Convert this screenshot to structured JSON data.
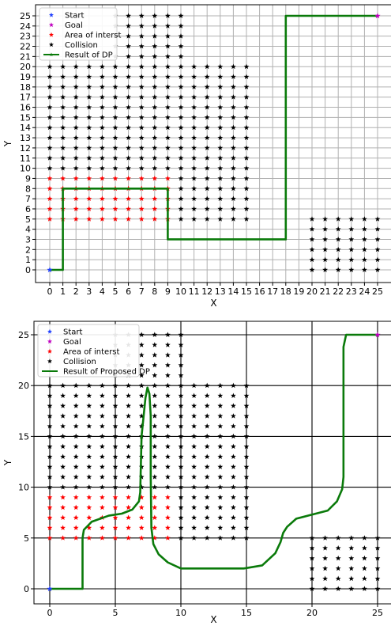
{
  "colors": {
    "start": "#1f3fff",
    "goal": "#c000c0",
    "interest": "#ff0000",
    "collision": "#000000",
    "path": "#0a7a0a",
    "grid_top": "#b0b0b0",
    "grid_bottom": "#000000"
  },
  "chart_data": [
    {
      "type": "scatter",
      "title": "",
      "xlabel": "X",
      "ylabel": "Y",
      "xlim": [
        0,
        25
      ],
      "ylim": [
        0,
        25
      ],
      "xticks": [
        "0",
        "1",
        "2",
        "3",
        "4",
        "5",
        "6",
        "7",
        "8",
        "9",
        "10",
        "11",
        "12",
        "13",
        "14",
        "15",
        "16",
        "17",
        "18",
        "19",
        "20",
        "21",
        "22",
        "23",
        "24",
        "25"
      ],
      "yticks": [
        "0",
        "1",
        "2",
        "3",
        "4",
        "5",
        "6",
        "7",
        "8",
        "9",
        "10",
        "11",
        "12",
        "13",
        "14",
        "15",
        "16",
        "17",
        "18",
        "19",
        "20",
        "21",
        "22",
        "23",
        "24",
        "25"
      ],
      "grid": true,
      "grid_step": 1,
      "legend_position": "top-left",
      "legend": [
        {
          "label": "Start",
          "kind": "start"
        },
        {
          "label": "Goal",
          "kind": "goal"
        },
        {
          "label": "Area of interst",
          "kind": "interest"
        },
        {
          "label": "Collision",
          "kind": "collision"
        },
        {
          "label": "Result of DP",
          "kind": "path"
        }
      ],
      "start": [
        0,
        0
      ],
      "goal": [
        25,
        25
      ],
      "interest_region": {
        "x_range": [
          0,
          9
        ],
        "y_range": [
          5,
          9
        ]
      },
      "collision_regions": [
        {
          "x_range": [
            0,
            15
          ],
          "y_range": [
            5,
            20
          ]
        },
        {
          "x_range": [
            5,
            10
          ],
          "y_range": [
            21,
            25
          ]
        },
        {
          "x_range": [
            20,
            25
          ],
          "y_range": [
            0,
            5
          ]
        }
      ],
      "path": {
        "name": "Result of DP",
        "x": [
          0,
          1,
          1,
          9,
          9,
          18,
          18,
          25
        ],
        "y": [
          0,
          0,
          8,
          8,
          3,
          3,
          25,
          25
        ]
      }
    },
    {
      "type": "scatter",
      "title": "",
      "xlabel": "X",
      "ylabel": "Y",
      "xlim": [
        0,
        25
      ],
      "ylim": [
        0,
        25
      ],
      "xticks": [
        "0",
        "5",
        "10",
        "15",
        "20",
        "25"
      ],
      "yticks": [
        "0",
        "5",
        "10",
        "15",
        "20",
        "25"
      ],
      "grid": true,
      "grid_step": 5,
      "legend_position": "top-left",
      "legend": [
        {
          "label": "Start",
          "kind": "start"
        },
        {
          "label": "Goal",
          "kind": "goal"
        },
        {
          "label": "Area of interst",
          "kind": "interest"
        },
        {
          "label": "Collision",
          "kind": "collision"
        },
        {
          "label": "Result of Proposed DP",
          "kind": "path"
        }
      ],
      "start": [
        0,
        0
      ],
      "goal": [
        25,
        25
      ],
      "interest_region": {
        "x_range": [
          0,
          9
        ],
        "y_range": [
          5,
          9
        ]
      },
      "collision_regions": [
        {
          "x_range": [
            0,
            15
          ],
          "y_range": [
            5,
            20
          ]
        },
        {
          "x_range": [
            5,
            10
          ],
          "y_range": [
            21,
            25
          ]
        },
        {
          "x_range": [
            20,
            25
          ],
          "y_range": [
            0,
            5
          ]
        }
      ],
      "path": {
        "name": "Result of Proposed DP",
        "x": [
          0,
          2.5,
          2.5,
          2.6,
          3.2,
          4.5,
          5.5,
          6.3,
          6.8,
          6.9,
          7.0,
          7.3,
          7.45,
          7.6,
          7.7,
          7.7,
          7.75,
          7.9,
          8.3,
          9.0,
          10.0,
          14.8,
          16.2,
          17.2,
          17.6,
          17.8,
          18.1,
          18.8,
          20.0,
          21.2,
          21.9,
          22.3,
          22.4,
          22.4,
          22.6,
          25.0
        ],
        "y": [
          0,
          0,
          5.0,
          5.8,
          6.6,
          7.2,
          7.4,
          7.8,
          8.6,
          9.5,
          15.0,
          18.8,
          19.8,
          19.2,
          17.0,
          11.0,
          6.0,
          4.4,
          3.4,
          2.6,
          2.0,
          2.0,
          2.3,
          3.5,
          4.6,
          5.5,
          6.1,
          6.9,
          7.3,
          7.7,
          8.6,
          9.8,
          11.0,
          23.8,
          25.0,
          25.0
        ]
      }
    }
  ]
}
